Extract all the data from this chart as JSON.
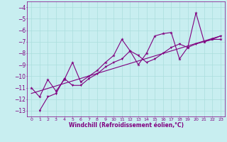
{
  "xlabel": "Windchill (Refroidissement éolien,°C)",
  "bg_color": "#c8eef0",
  "line_color": "#800080",
  "grid_color": "#aadddd",
  "xlim": [
    -0.5,
    23.5
  ],
  "ylim": [
    -13.5,
    -3.5
  ],
  "yticks": [
    -13,
    -12,
    -11,
    -10,
    -9,
    -8,
    -7,
    -6,
    -5,
    -4
  ],
  "xticks": [
    0,
    1,
    2,
    3,
    4,
    5,
    6,
    7,
    8,
    9,
    10,
    11,
    12,
    13,
    14,
    15,
    16,
    17,
    18,
    19,
    20,
    21,
    22,
    23
  ],
  "line1_x": [
    0,
    1,
    2,
    3,
    4,
    5,
    6,
    7,
    8,
    9,
    10,
    11,
    12,
    13,
    14,
    15,
    16,
    17,
    18,
    19,
    20,
    21,
    22,
    23
  ],
  "line1_y": [
    -11.0,
    -11.8,
    -10.3,
    -11.3,
    -10.3,
    -8.8,
    -10.5,
    -10.0,
    -9.5,
    -8.8,
    -8.2,
    -6.8,
    -7.8,
    -9.0,
    -8.0,
    -6.5,
    -6.3,
    -6.2,
    -8.5,
    -7.5,
    -4.5,
    -7.0,
    -6.8,
    -6.8
  ],
  "line2_x": [
    1,
    2,
    3,
    4,
    5,
    6,
    7,
    8,
    9,
    10,
    11,
    12,
    13,
    14,
    15,
    16,
    17,
    18,
    19,
    20,
    21,
    22,
    23
  ],
  "line2_y": [
    -13.0,
    -11.8,
    -11.5,
    -10.2,
    -10.8,
    -10.8,
    -10.2,
    -9.8,
    -9.2,
    -8.8,
    -8.5,
    -7.8,
    -8.2,
    -8.8,
    -8.5,
    -8.0,
    -7.5,
    -7.2,
    -7.5,
    -7.2,
    -7.0,
    -6.8,
    -6.5
  ],
  "line3_x": [
    0,
    23
  ],
  "line3_y": [
    -11.5,
    -6.5
  ]
}
